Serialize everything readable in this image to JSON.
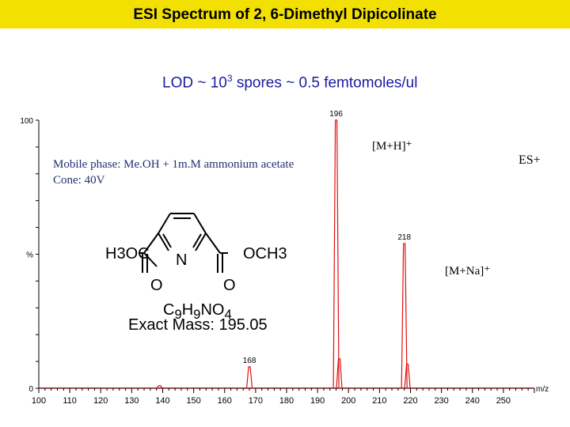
{
  "header": {
    "title": "ESI Spectrum of 2, 6-Dimethyl Dipicolinate"
  },
  "lod": {
    "prefix": "LOD ~ 10",
    "exponent": "3",
    "suffix": " spores ~ 0.5 femtomoles/ul"
  },
  "annotations": {
    "mobile_phase": "Mobile phase:  Me.OH + 1m.M ammonium acetate",
    "cone": "Cone:  40V",
    "ion_mh": "[M+H]⁺",
    "ion_mna": "[M+Na]⁺",
    "mode": "ES+"
  },
  "structure": {
    "left_group": "H3OC",
    "right_group": "OCH3",
    "ring_n": "N",
    "oxygen": "O",
    "formula": "C9H9NO4",
    "exact_mass": "Exact Mass: 195.05"
  },
  "colors": {
    "peaks": "#e01010",
    "axis": "#000000",
    "title_bar": "#f2e100",
    "lod_text": "#1a1aa0"
  },
  "chart_data": {
    "type": "line",
    "xlabel": "m/z",
    "ylabel": "%",
    "x_range": [
      100,
      260
    ],
    "y_range": [
      0,
      100
    ],
    "x_ticks": [
      100,
      110,
      120,
      130,
      140,
      150,
      160,
      170,
      180,
      190,
      200,
      210,
      220,
      230,
      240,
      250
    ],
    "y_tick_labels": [
      {
        "value": 100,
        "label": "100"
      },
      {
        "value": 50,
        "label": "%"
      },
      {
        "value": 0,
        "label": "0"
      }
    ],
    "peaks": [
      {
        "mz": 139,
        "intensity": 1,
        "label": ""
      },
      {
        "mz": 168,
        "intensity": 8,
        "label": "168"
      },
      {
        "mz": 196,
        "intensity": 100,
        "label": "196"
      },
      {
        "mz": 197,
        "intensity": 11,
        "label": ""
      },
      {
        "mz": 218,
        "intensity": 54,
        "label": "218"
      },
      {
        "mz": 219,
        "intensity": 9,
        "label": ""
      }
    ]
  }
}
